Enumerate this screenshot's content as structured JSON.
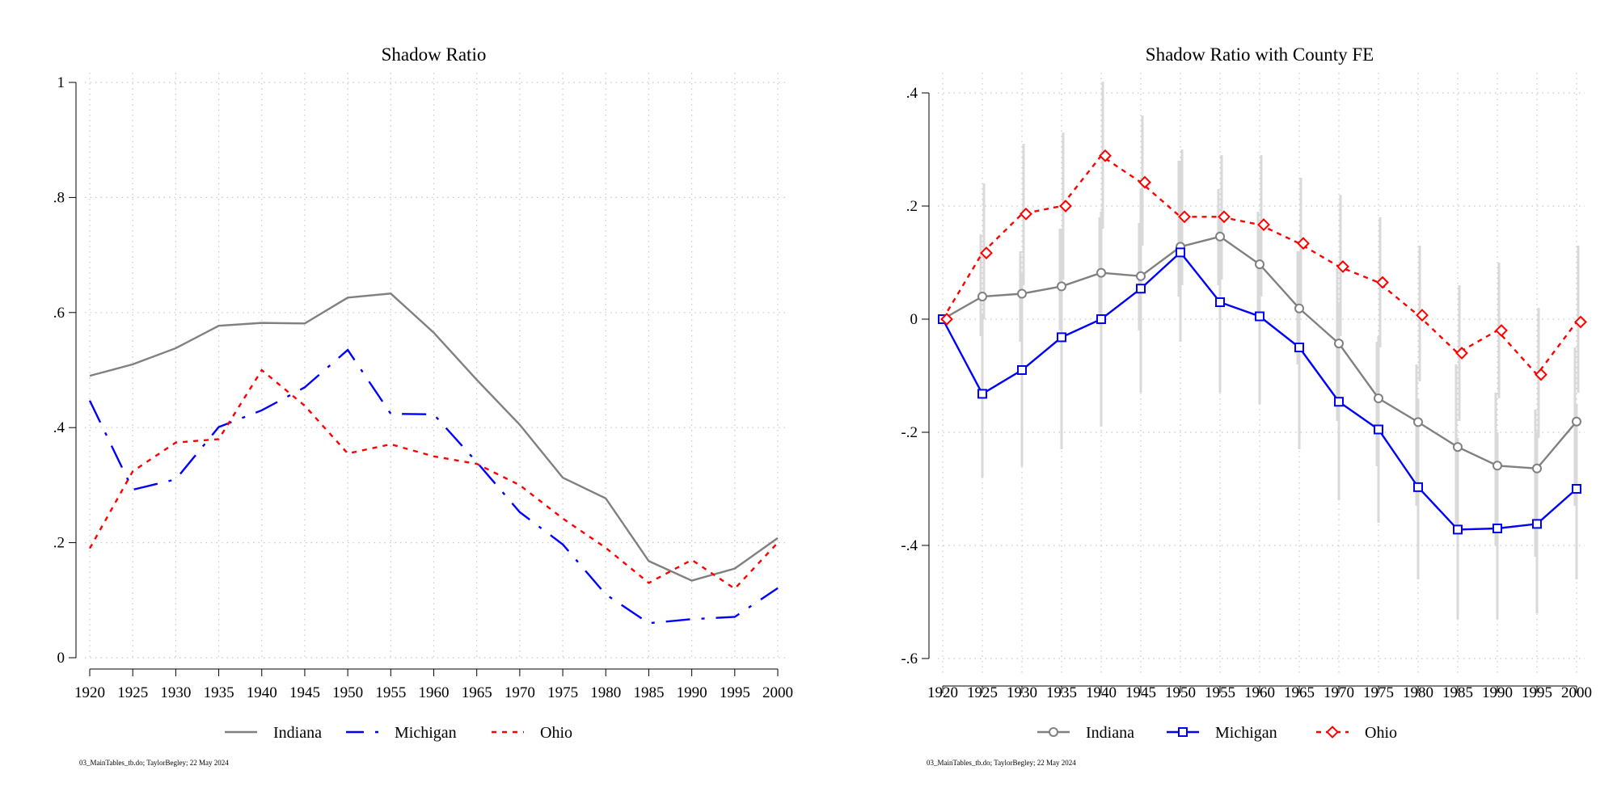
{
  "chart_data": [
    {
      "type": "line",
      "title": "Shadow Ratio",
      "xlabel": "",
      "ylabel": "",
      "x": [
        1920,
        1925,
        1930,
        1935,
        1940,
        1945,
        1950,
        1955,
        1960,
        1965,
        1970,
        1975,
        1980,
        1985,
        1990,
        1995,
        2000
      ],
      "xticks": [
        "1920",
        "1925",
        "1930",
        "1935",
        "1940",
        "1945",
        "1950",
        "1955",
        "1960",
        "1965",
        "1970",
        "1975",
        "1980",
        "1985",
        "1990",
        "1995",
        "2000"
      ],
      "ylim": [
        0,
        1
      ],
      "yticks": [
        0,
        0.2,
        0.4,
        0.6,
        0.8,
        1
      ],
      "yticklabels": [
        "0",
        ".2",
        ".4",
        ".6",
        ".8",
        "1"
      ],
      "grid": true,
      "legend": "bottom",
      "series": [
        {
          "name": "Indiana",
          "color": "#808080",
          "dash": "solid",
          "values": [
            0.49,
            0.51,
            0.538,
            0.577,
            0.582,
            0.581,
            0.626,
            0.633,
            0.565,
            0.483,
            0.405,
            0.313,
            0.277,
            0.168,
            0.134,
            0.155,
            0.208
          ]
        },
        {
          "name": "Michigan",
          "color": "#0000ff",
          "dash": "longdash",
          "values": [
            0.447,
            0.292,
            0.31,
            0.401,
            0.43,
            0.47,
            0.535,
            0.424,
            0.423,
            0.34,
            0.253,
            0.197,
            0.11,
            0.06,
            0.067,
            0.071,
            0.121
          ]
        },
        {
          "name": "Ohio",
          "color": "#ff0000",
          "dash": "shortdash",
          "values": [
            0.19,
            0.324,
            0.374,
            0.38,
            0.5,
            0.438,
            0.355,
            0.371,
            0.35,
            0.337,
            0.3,
            0.242,
            0.191,
            0.13,
            0.17,
            0.12,
            0.2
          ]
        }
      ],
      "footnote": "03_MainTables_tb.do; TaylorBegley; 22 May 2024"
    },
    {
      "type": "line",
      "title": "Shadow Ratio with County FE",
      "xlabel": "",
      "ylabel": "",
      "x": [
        1920,
        1925,
        1930,
        1935,
        1940,
        1945,
        1950,
        1955,
        1960,
        1965,
        1970,
        1975,
        1980,
        1985,
        1990,
        1995,
        2000
      ],
      "xticks": [
        "1920",
        "1925",
        "1930",
        "1935",
        "1940",
        "1945",
        "1950",
        "1955",
        "1960",
        "1965",
        "1970",
        "1975",
        "1980",
        "1985",
        "1990",
        "1995",
        "2000"
      ],
      "ylim": [
        -0.6,
        0.4
      ],
      "yticks": [
        -0.6,
        -0.4,
        -0.2,
        0,
        0.2,
        0.4
      ],
      "yticklabels": [
        "-.6",
        "-.4",
        "-.2",
        "0",
        ".2",
        ".4"
      ],
      "grid": true,
      "legend": "bottom",
      "error_bars": true,
      "series": [
        {
          "name": "Indiana",
          "color": "#808080",
          "marker": "circle",
          "values": [
            0,
            0.04,
            0.045,
            0.058,
            0.082,
            0.076,
            0.128,
            0.146,
            0.097,
            0.019,
            -0.043,
            -0.14,
            -0.182,
            -0.226,
            -0.259,
            -0.264,
            -0.181
          ],
          "ci": [
            [
              0,
              0
            ],
            [
              -0.03,
              0.15
            ],
            [
              -0.04,
              0.12
            ],
            [
              -0.02,
              0.16
            ],
            [
              -0.01,
              0.18
            ],
            [
              -0.02,
              0.17
            ],
            [
              0.04,
              0.28
            ],
            [
              0.06,
              0.23
            ],
            [
              0,
              0.19
            ],
            [
              -0.08,
              0.12
            ],
            [
              -0.18,
              0.09
            ],
            [
              -0.26,
              -0.04
            ],
            [
              -0.33,
              -0.08
            ],
            [
              -0.38,
              -0.08
            ],
            [
              -0.4,
              -0.13
            ],
            [
              -0.42,
              -0.16
            ],
            [
              -0.33,
              -0.05
            ]
          ]
        },
        {
          "name": "Michigan",
          "color": "#0000ff",
          "marker": "square",
          "values": [
            0,
            -0.132,
            -0.09,
            -0.032,
            0,
            0.054,
            0.118,
            0.03,
            0.005,
            -0.05,
            -0.146,
            -0.195,
            -0.297,
            -0.372,
            -0.37,
            -0.362,
            -0.3
          ],
          "ci": [
            [
              0,
              0
            ],
            [
              -0.28,
              0.01
            ],
            [
              -0.26,
              0.08
            ],
            [
              -0.23,
              0.16
            ],
            [
              -0.19,
              0.19
            ],
            [
              -0.13,
              0.23
            ],
            [
              -0.04,
              0.28
            ],
            [
              -0.13,
              0.18
            ],
            [
              -0.15,
              0.16
            ],
            [
              -0.23,
              0.12
            ],
            [
              -0.32,
              0.03
            ],
            [
              -0.36,
              -0.03
            ],
            [
              -0.46,
              -0.14
            ],
            [
              -0.53,
              -0.21
            ],
            [
              -0.53,
              -0.2
            ],
            [
              -0.52,
              -0.2
            ],
            [
              -0.46,
              -0.15
            ]
          ]
        },
        {
          "name": "Ohio",
          "color": "#ff0000",
          "marker": "diamond",
          "values": [
            0,
            0.117,
            0.186,
            0.2,
            0.289,
            0.242,
            0.181,
            0.181,
            0.167,
            0.134,
            0.093,
            0.065,
            0.007,
            -0.06,
            -0.02,
            -0.098,
            -0.005
          ],
          "ci": [
            [
              0,
              0
            ],
            [
              0,
              0.24
            ],
            [
              0.06,
              0.31
            ],
            [
              0.07,
              0.33
            ],
            [
              0.16,
              0.42
            ],
            [
              0.13,
              0.36
            ],
            [
              0.06,
              0.3
            ],
            [
              0.07,
              0.29
            ],
            [
              0.04,
              0.29
            ],
            [
              0.02,
              0.25
            ],
            [
              -0.03,
              0.22
            ],
            [
              -0.05,
              0.18
            ],
            [
              -0.11,
              0.13
            ],
            [
              -0.18,
              0.06
            ],
            [
              -0.14,
              0.1
            ],
            [
              -0.21,
              0.02
            ],
            [
              -0.13,
              0.13
            ]
          ]
        }
      ],
      "footnote": "03_MainTables_tb.do; TaylorBegley; 22 May 2024"
    }
  ]
}
